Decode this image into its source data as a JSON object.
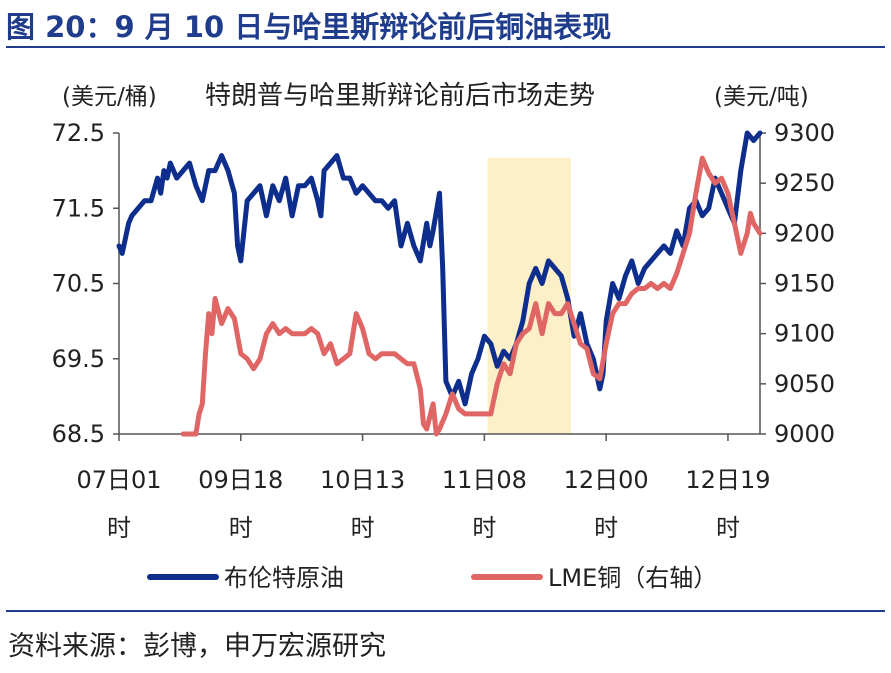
{
  "figure": {
    "title": "图 20：9 月 10 日与哈里斯辩论前后铜油表现",
    "source": "资料来源：彭博，申万宏源研究"
  },
  "colors": {
    "brent": "#0d2e8c",
    "copper": "#e06666",
    "highlight": "#fdf0c8",
    "axis": "#1f3d8c"
  },
  "chart_data": {
    "type": "line",
    "title": "特朗普与哈里斯辩论前后市场走势",
    "y_left_unit": "(美元/桶)",
    "y_right_unit": "(美元/吨)",
    "y_left_lim": [
      68.5,
      72.5
    ],
    "y_right_lim": [
      9000,
      9300
    ],
    "y_left_ticks": [
      "72.5",
      "71.5",
      "70.5",
      "69.5",
      "68.5"
    ],
    "y_right_ticks": [
      "9300",
      "9250",
      "9200",
      "9150",
      "9100",
      "9050",
      "9000"
    ],
    "x_range": [
      0,
      100
    ],
    "x_ticks": [
      {
        "x": 0,
        "label": "07日01\n时"
      },
      {
        "x": 19,
        "label": "09日18\n时"
      },
      {
        "x": 38,
        "label": "10日13\n时"
      },
      {
        "x": 57,
        "label": "11日08\n时"
      },
      {
        "x": 76,
        "label": "12日00\n时"
      },
      {
        "x": 95,
        "label": "12日19\n时"
      }
    ],
    "highlight_band": [
      57.5,
      70.5
    ],
    "grid": false,
    "legend_position": "bottom",
    "series": [
      {
        "name": "布伦特原油",
        "axis": "left",
        "color": "#0d2e8c",
        "points": [
          [
            0,
            71.0
          ],
          [
            0.5,
            70.9
          ],
          [
            1,
            71.1
          ],
          [
            1.5,
            71.3
          ],
          [
            2,
            71.4
          ],
          [
            3,
            71.5
          ],
          [
            4,
            71.6
          ],
          [
            5,
            71.6
          ],
          [
            6,
            71.9
          ],
          [
            6.5,
            71.7
          ],
          [
            7,
            72.0
          ],
          [
            7.5,
            71.9
          ],
          [
            8,
            72.1
          ],
          [
            9,
            71.9
          ],
          [
            10,
            72.0
          ],
          [
            11,
            72.1
          ],
          [
            12,
            71.8
          ],
          [
            13,
            71.6
          ],
          [
            14,
            72.0
          ],
          [
            15,
            72.0
          ],
          [
            16,
            72.2
          ],
          [
            17,
            72.0
          ],
          [
            18,
            71.7
          ],
          [
            18.5,
            71.0
          ],
          [
            19,
            70.8
          ],
          [
            19.5,
            71.2
          ],
          [
            20,
            71.6
          ],
          [
            21,
            71.7
          ],
          [
            22,
            71.8
          ],
          [
            23,
            71.4
          ],
          [
            24,
            71.8
          ],
          [
            25,
            71.6
          ],
          [
            26,
            71.9
          ],
          [
            27,
            71.4
          ],
          [
            28,
            71.8
          ],
          [
            29,
            71.8
          ],
          [
            30,
            71.9
          ],
          [
            31,
            71.6
          ],
          [
            31.5,
            71.4
          ],
          [
            32,
            72.0
          ],
          [
            33,
            72.1
          ],
          [
            34,
            72.2
          ],
          [
            35,
            71.9
          ],
          [
            36,
            71.9
          ],
          [
            37,
            71.7
          ],
          [
            38,
            71.8
          ],
          [
            39,
            71.7
          ],
          [
            40,
            71.6
          ],
          [
            41,
            71.6
          ],
          [
            42,
            71.5
          ],
          [
            43,
            71.6
          ],
          [
            44,
            71.0
          ],
          [
            45,
            71.3
          ],
          [
            46,
            71.0
          ],
          [
            47,
            70.8
          ],
          [
            48,
            71.3
          ],
          [
            48.5,
            71.0
          ],
          [
            49,
            71.2
          ],
          [
            50,
            71.7
          ],
          [
            50.5,
            70.7
          ],
          [
            51,
            69.2
          ],
          [
            52,
            69.0
          ],
          [
            53,
            69.2
          ],
          [
            54,
            68.9
          ],
          [
            55,
            69.3
          ],
          [
            56,
            69.5
          ],
          [
            57,
            69.8
          ],
          [
            58,
            69.7
          ],
          [
            59,
            69.4
          ],
          [
            60,
            69.6
          ],
          [
            61,
            69.5
          ],
          [
            62,
            69.7
          ],
          [
            63,
            70.0
          ],
          [
            64,
            70.5
          ],
          [
            65,
            70.7
          ],
          [
            66,
            70.5
          ],
          [
            67,
            70.8
          ],
          [
            68,
            70.7
          ],
          [
            69,
            70.6
          ],
          [
            70,
            70.3
          ],
          [
            71,
            69.8
          ],
          [
            72,
            70.1
          ],
          [
            73,
            69.7
          ],
          [
            74,
            69.5
          ],
          [
            75,
            69.1
          ],
          [
            75.5,
            69.3
          ],
          [
            76,
            70.0
          ],
          [
            77,
            70.5
          ],
          [
            78,
            70.3
          ],
          [
            79,
            70.6
          ],
          [
            80,
            70.8
          ],
          [
            81,
            70.5
          ],
          [
            82,
            70.7
          ],
          [
            83,
            70.8
          ],
          [
            84,
            70.9
          ],
          [
            85,
            71.0
          ],
          [
            86,
            70.9
          ],
          [
            87,
            71.2
          ],
          [
            88,
            71.0
          ],
          [
            89,
            71.5
          ],
          [
            90,
            71.6
          ],
          [
            91,
            71.4
          ],
          [
            92,
            71.5
          ],
          [
            93,
            71.9
          ],
          [
            94,
            71.7
          ],
          [
            95,
            71.5
          ],
          [
            96,
            71.3
          ],
          [
            97,
            72.0
          ],
          [
            98,
            72.5
          ],
          [
            99,
            72.4
          ],
          [
            100,
            72.5
          ]
        ]
      },
      {
        "name": "LME铜（右轴）",
        "axis": "right",
        "color": "#e06666",
        "points": [
          [
            10,
            9000
          ],
          [
            12,
            9000
          ],
          [
            12.5,
            9020
          ],
          [
            13,
            9030
          ],
          [
            13.5,
            9080
          ],
          [
            14,
            9120
          ],
          [
            14.5,
            9100
          ],
          [
            15,
            9135
          ],
          [
            16,
            9110
          ],
          [
            17,
            9125
          ],
          [
            18,
            9115
          ],
          [
            19,
            9080
          ],
          [
            20,
            9075
          ],
          [
            21,
            9065
          ],
          [
            22,
            9075
          ],
          [
            23,
            9100
          ],
          [
            24,
            9110
          ],
          [
            25,
            9100
          ],
          [
            26,
            9105
          ],
          [
            27,
            9100
          ],
          [
            28,
            9100
          ],
          [
            29,
            9100
          ],
          [
            30,
            9105
          ],
          [
            31,
            9100
          ],
          [
            32,
            9080
          ],
          [
            33,
            9090
          ],
          [
            34,
            9070
          ],
          [
            35,
            9075
          ],
          [
            36,
            9080
          ],
          [
            37,
            9120
          ],
          [
            38,
            9105
          ],
          [
            39,
            9080
          ],
          [
            40,
            9075
          ],
          [
            41,
            9080
          ],
          [
            42,
            9080
          ],
          [
            43,
            9080
          ],
          [
            44,
            9075
          ],
          [
            45,
            9070
          ],
          [
            46,
            9070
          ],
          [
            47,
            9045
          ],
          [
            47.5,
            9010
          ],
          [
            48,
            9005
          ],
          [
            49,
            9030
          ],
          [
            49.5,
            9000
          ],
          [
            50,
            9005
          ],
          [
            51,
            9020
          ],
          [
            52,
            9040
          ],
          [
            53,
            9025
          ],
          [
            54,
            9020
          ],
          [
            55,
            9020
          ],
          [
            56,
            9020
          ],
          [
            57,
            9020
          ],
          [
            58,
            9020
          ],
          [
            59,
            9050
          ],
          [
            60,
            9070
          ],
          [
            61,
            9060
          ],
          [
            62,
            9090
          ],
          [
            63,
            9100
          ],
          [
            64,
            9105
          ],
          [
            65,
            9130
          ],
          [
            66,
            9100
          ],
          [
            67,
            9130
          ],
          [
            68,
            9120
          ],
          [
            69,
            9120
          ],
          [
            70,
            9130
          ],
          [
            71,
            9110
          ],
          [
            72,
            9090
          ],
          [
            73,
            9085
          ],
          [
            74,
            9060
          ],
          [
            75,
            9055
          ],
          [
            76,
            9090
          ],
          [
            77,
            9120
          ],
          [
            78,
            9130
          ],
          [
            79,
            9130
          ],
          [
            80,
            9140
          ],
          [
            81,
            9145
          ],
          [
            82,
            9145
          ],
          [
            83,
            9150
          ],
          [
            84,
            9145
          ],
          [
            85,
            9150
          ],
          [
            86,
            9145
          ],
          [
            87,
            9160
          ],
          [
            88,
            9180
          ],
          [
            89,
            9200
          ],
          [
            90,
            9240
          ],
          [
            91,
            9275
          ],
          [
            92,
            9260
          ],
          [
            93,
            9250
          ],
          [
            94,
            9255
          ],
          [
            95,
            9240
          ],
          [
            96,
            9210
          ],
          [
            97,
            9180
          ],
          [
            98,
            9200
          ],
          [
            98.5,
            9220
          ],
          [
            99,
            9210
          ],
          [
            100,
            9200
          ]
        ]
      }
    ]
  }
}
